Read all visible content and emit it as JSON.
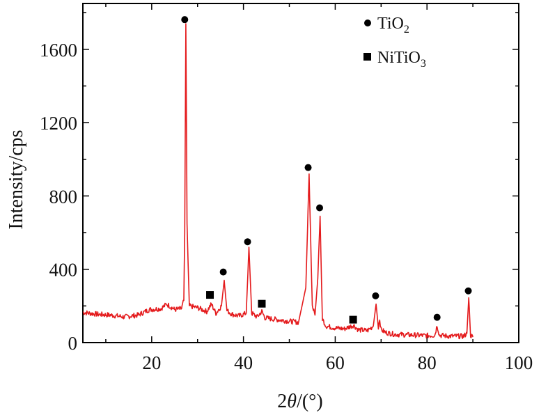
{
  "chart_data": {
    "type": "line",
    "xlabel_prefix": "2",
    "xlabel_symbol": "θ",
    "xlabel_suffix": "/(°)",
    "ylabel": "Intensity/cps",
    "xlim": [
      5,
      100
    ],
    "ylim": [
      0,
      1850
    ],
    "x_ticks": [
      20,
      40,
      60,
      80,
      100
    ],
    "x_tick_labels": [
      "20",
      "40",
      "60",
      "80",
      "100"
    ],
    "y_ticks": [
      0,
      400,
      800,
      1200,
      1600
    ],
    "y_tick_labels": [
      "0",
      "400",
      "800",
      "1200",
      "1600"
    ],
    "grid": false,
    "legend_position": "top-right",
    "line_color": "#e41a1c",
    "marker_color": "#000000",
    "legend": [
      {
        "marker": "circle",
        "base": "TiO",
        "sub": "2"
      },
      {
        "marker": "square",
        "base": "NiTiO",
        "sub": "3"
      }
    ],
    "series": [
      {
        "x": [
          5,
          8,
          11,
          14,
          17,
          19.5,
          22,
          23.3,
          25,
          26.5,
          27.0,
          27.2,
          27.45,
          27.7,
          28.2,
          30,
          32,
          33,
          34,
          35.2,
          35.8,
          36.4,
          37.5,
          39,
          40.6,
          41.2,
          41.8,
          43,
          44.0,
          44.7,
          46,
          49,
          52,
          53.6,
          54.3,
          55.0,
          55.6,
          56.2,
          56.7,
          57.2,
          58,
          60,
          62,
          64.0,
          65,
          67,
          68.3,
          68.9,
          69.4,
          69.7,
          70.0,
          71,
          73,
          76,
          78,
          80,
          81.7,
          82.2,
          82.7,
          85,
          88,
          88.7,
          89.1,
          89.5,
          90
        ],
        "y": [
          165,
          155,
          150,
          140,
          150,
          180,
          185,
          210,
          180,
          185,
          230,
          600,
          1740,
          650,
          200,
          190,
          170,
          210,
          160,
          200,
          340,
          175,
          155,
          145,
          160,
          520,
          160,
          140,
          170,
          135,
          130,
          120,
          110,
          300,
          920,
          200,
          150,
          350,
          690,
          130,
          90,
          80,
          75,
          95,
          70,
          65,
          90,
          210,
          85,
          130,
          70,
          55,
          45,
          42,
          40,
          38,
          40,
          95,
          40,
          35,
          35,
          50,
          245,
          40,
          30
        ]
      }
    ],
    "peak_markers": [
      {
        "phase": "TiO2",
        "marker": "circle",
        "x": 27.2,
        "y": 1762
      },
      {
        "phase": "TiO2",
        "marker": "circle",
        "x": 35.6,
        "y": 385
      },
      {
        "phase": "TiO2",
        "marker": "circle",
        "x": 40.9,
        "y": 550
      },
      {
        "phase": "TiO2",
        "marker": "circle",
        "x": 54.1,
        "y": 955
      },
      {
        "phase": "TiO2",
        "marker": "circle",
        "x": 56.6,
        "y": 735
      },
      {
        "phase": "TiO2",
        "marker": "circle",
        "x": 68.8,
        "y": 255
      },
      {
        "phase": "TiO2",
        "marker": "circle",
        "x": 82.2,
        "y": 138
      },
      {
        "phase": "TiO2",
        "marker": "circle",
        "x": 89.0,
        "y": 282
      },
      {
        "phase": "NiTiO3",
        "marker": "square",
        "x": 32.7,
        "y": 260
      },
      {
        "phase": "NiTiO3",
        "marker": "square",
        "x": 44.0,
        "y": 212
      },
      {
        "phase": "NiTiO3",
        "marker": "square",
        "x": 63.9,
        "y": 125
      }
    ]
  }
}
